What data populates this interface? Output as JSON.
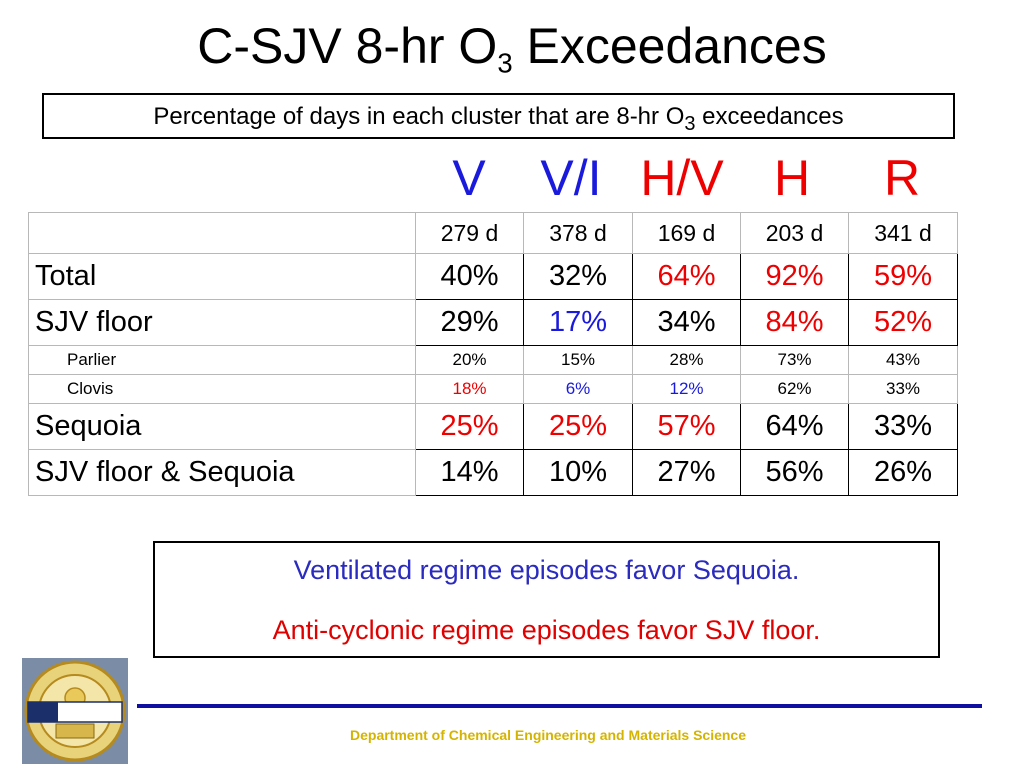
{
  "title": {
    "prefix": "C-SJV 8-hr O",
    "sub": "3",
    "suffix": " Exceedances"
  },
  "subtitle": {
    "prefix": "Percentage of days in each cluster that are 8-hr O",
    "sub": "3",
    "suffix": " exceedances"
  },
  "clusters": [
    {
      "label": "V",
      "color": "#1a1add"
    },
    {
      "label": "V/I",
      "color": "#1a1add"
    },
    {
      "label": "H/V",
      "color": "#ee0000"
    },
    {
      "label": "H",
      "color": "#ee0000"
    },
    {
      "label": "R",
      "color": "#ee0000"
    }
  ],
  "table": {
    "header": [
      "279 d",
      "378 d",
      "169 d",
      "203 d",
      "341 d"
    ],
    "rows": [
      {
        "label": "Total",
        "size": "big",
        "indent": false,
        "values": [
          "40%",
          "32%",
          "64%",
          "92%",
          "59%"
        ],
        "colors": [
          "black",
          "black",
          "red",
          "red",
          "red"
        ]
      },
      {
        "label": "SJV floor",
        "size": "big",
        "indent": false,
        "values": [
          "29%",
          "17%",
          "34%",
          "84%",
          "52%"
        ],
        "colors": [
          "black",
          "blue",
          "black",
          "red",
          "red"
        ]
      },
      {
        "label": "Parlier",
        "size": "small",
        "indent": true,
        "values": [
          "20%",
          "15%",
          "28%",
          "73%",
          "43%"
        ],
        "colors": [
          "black",
          "black",
          "black",
          "black",
          "black"
        ]
      },
      {
        "label": "Clovis",
        "size": "small",
        "indent": true,
        "values": [
          "18%",
          "6%",
          "12%",
          "62%",
          "33%"
        ],
        "colors": [
          "red",
          "blue",
          "blue",
          "black",
          "black"
        ]
      },
      {
        "label": "Sequoia",
        "size": "big",
        "indent": false,
        "values": [
          "25%",
          "25%",
          "57%",
          "64%",
          "33%"
        ],
        "colors": [
          "red",
          "red",
          "red",
          "black",
          "black"
        ]
      },
      {
        "label": "SJV floor & Sequoia",
        "size": "big",
        "indent": false,
        "values": [
          "14%",
          "10%",
          "27%",
          "56%",
          "26%"
        ],
        "colors": [
          "black",
          "black",
          "black",
          "black",
          "black"
        ]
      }
    ]
  },
  "notes": {
    "line1": "Ventilated regime episodes favor Sequoia.",
    "line2": "Anti-cyclonic regime episodes favor SJV floor."
  },
  "logo": {
    "icon": "uc-davis-seal-icon"
  },
  "footer": "Department of Chemical Engineering and Materials Science"
}
